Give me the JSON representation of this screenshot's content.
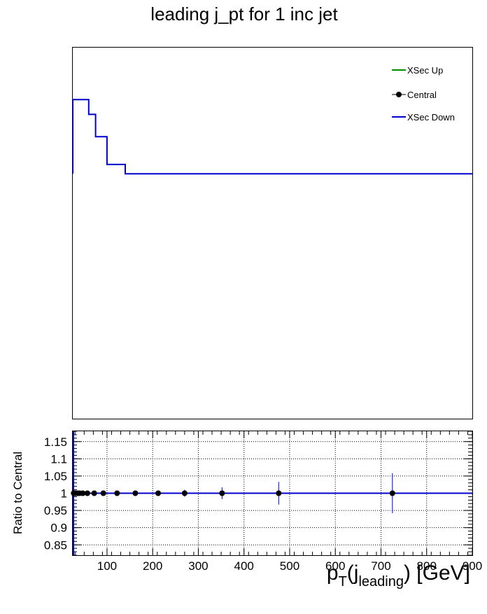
{
  "title": "leading j_pt for 1 inc jet",
  "colors": {
    "up": "#008800",
    "central": "#000000",
    "down": "#0000cc",
    "axis": "#000000"
  },
  "chart_data": [
    {
      "type": "line",
      "title": "leading j_pt for 1 inc jet",
      "legend_placement": "top-right",
      "legend": [
        {
          "label": "XSec Up",
          "marker": "line",
          "color": "#008800"
        },
        {
          "label": "Central",
          "marker": "point-errorbar",
          "color": "#000000"
        },
        {
          "label": "XSec Down",
          "marker": "line",
          "color": "#0000cc"
        }
      ],
      "xlim": [
        25,
        900
      ],
      "y_axis_labels_shown": false,
      "series": [
        {
          "name": "XSec Down",
          "style": "step",
          "bin_edges": [
            25,
            60,
            75,
            100,
            140,
            900
          ],
          "values": [
            0.86,
            0.82,
            0.76,
            0.685,
            0.66
          ],
          "baseline": 0.66,
          "ylim": [
            0,
            1
          ]
        }
      ]
    },
    {
      "type": "scatter",
      "ylabel": "Ratio to Central",
      "xlabel_main": "p",
      "xlabel_sub1": "T",
      "xlabel_mid": "(j",
      "xlabel_sub2": "leading",
      "xlabel_end": ") [GeV]",
      "xlim": [
        25,
        900
      ],
      "ylim": [
        0.82,
        1.18
      ],
      "grid": true,
      "xticks": [
        100,
        200,
        300,
        400,
        500,
        600,
        700,
        800,
        900
      ],
      "yticks": [
        0.85,
        0.9,
        0.95,
        1,
        1.05,
        1.1,
        1.15
      ],
      "ytick_labels": [
        "0.85",
        "0.9",
        "0.95",
        "1",
        "1.05",
        "1.1",
        "1.15"
      ],
      "reference_line": 1.0,
      "series": [
        {
          "name": "",
          "x": [
            27,
            30,
            35,
            40,
            47,
            57,
            72,
            92,
            122,
            162,
            212,
            270,
            352,
            476,
            725
          ],
          "y": [
            1,
            1,
            1,
            1,
            1,
            1,
            1,
            1,
            1,
            1,
            1,
            1,
            1,
            1,
            1
          ],
          "yerr": [
            0.001,
            0.001,
            0.001,
            0.001,
            0.001,
            0.001,
            0.002,
            0.002,
            0.003,
            0.004,
            0.006,
            0.01,
            0.017,
            0.033,
            0.058
          ]
        }
      ]
    }
  ]
}
